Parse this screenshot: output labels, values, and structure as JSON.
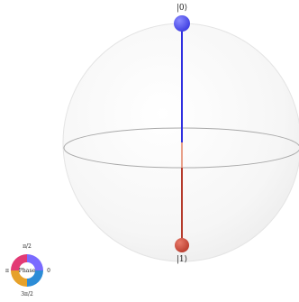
{
  "bloch_sphere": {
    "north_pole_label": "|0⟩",
    "south_pole_label": "|1⟩",
    "colors": {
      "sphere_fill": "#f3f3f3",
      "sphere_edge": "#e3e3e3",
      "equator": "#a9a9a9",
      "upper_axis": "#2f2fe0",
      "lower_axis": "#b53b2c",
      "north_marker": "#4d4df0",
      "south_marker": "#c9483a",
      "state_link": "#e8a08a"
    }
  },
  "phase_wheel": {
    "center_label": "Phase",
    "top_label": "π/2",
    "left_label": "π",
    "right_label": "0",
    "bottom_label": "3π/2"
  }
}
